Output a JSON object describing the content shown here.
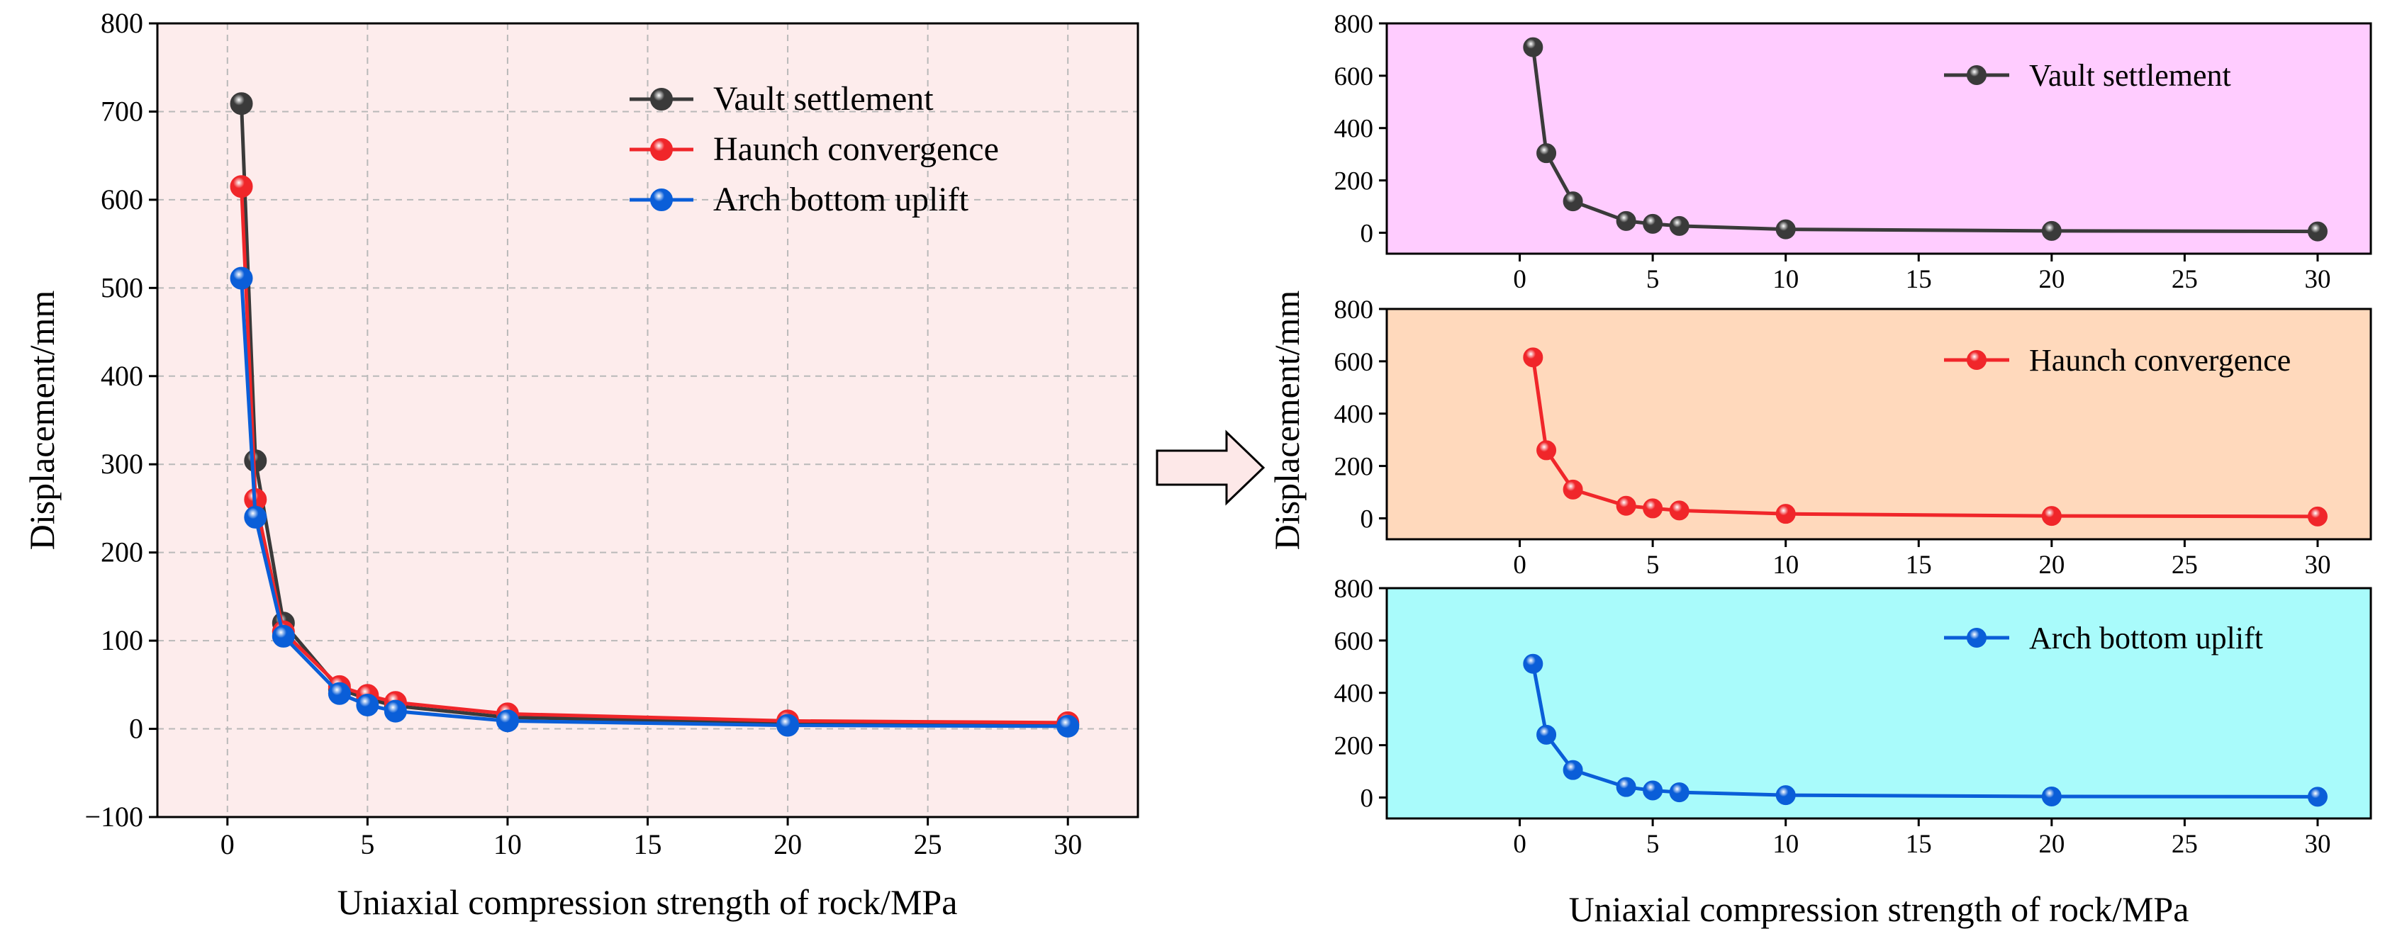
{
  "colors": {
    "vault": "#3a3a3a",
    "haunch": "#f0262a",
    "arch": "#0a5ed8",
    "main_bg": "#fdecec",
    "sub1_bg": "#ffccff",
    "sub2_bg": "#ffd9bc",
    "sub3_bg": "#a9fbfb",
    "arrow_fill": "#fde8e8"
  },
  "chart_data": [
    {
      "id": "main",
      "type": "line",
      "xlabel": "Uniaxial compression strength of rock/MPa",
      "ylabel": "Displacement/mm",
      "xlim": [
        -2.5,
        32.5
      ],
      "ylim": [
        -100,
        800
      ],
      "xticks": [
        0,
        5,
        10,
        15,
        20,
        25,
        30
      ],
      "yticks": [
        -100,
        0,
        100,
        200,
        300,
        400,
        500,
        600,
        700,
        800
      ],
      "ytick_labels": [
        "−100",
        "0",
        "100",
        "200",
        "300",
        "400",
        "500",
        "600",
        "700",
        "800"
      ],
      "grid": true,
      "legend": "top-right",
      "x": [
        0.5,
        1,
        2,
        4,
        5,
        6,
        10,
        20,
        30
      ],
      "series": [
        {
          "name": "Vault settlement",
          "color_key": "vault",
          "values": [
            709,
            304,
            120,
            45,
            34,
            26,
            13,
            7,
            5
          ]
        },
        {
          "name": "Haunch convergence",
          "color_key": "haunch",
          "values": [
            615,
            260,
            110,
            48,
            38,
            30,
            17,
            9,
            7
          ]
        },
        {
          "name": "Arch bottom uplift",
          "color_key": "arch",
          "values": [
            511,
            240,
            105,
            40,
            27,
            20,
            9,
            4,
            3
          ]
        }
      ]
    },
    {
      "id": "sub1",
      "type": "line",
      "xlim": [
        -5,
        32
      ],
      "ylim": [
        -80,
        800
      ],
      "xticks": [
        0,
        5,
        10,
        15,
        20,
        25,
        30
      ],
      "yticks": [
        0,
        200,
        400,
        600,
        800
      ],
      "legend": "top-right",
      "x": [
        0.5,
        1,
        2,
        4,
        5,
        6,
        10,
        20,
        30
      ],
      "series": [
        {
          "name": "Vault settlement",
          "color_key": "vault",
          "values": [
            709,
            304,
            120,
            45,
            34,
            26,
            13,
            7,
            5
          ]
        }
      ]
    },
    {
      "id": "sub2",
      "type": "line",
      "xlim": [
        -5,
        32
      ],
      "ylim": [
        -80,
        800
      ],
      "xticks": [
        0,
        5,
        10,
        15,
        20,
        25,
        30
      ],
      "yticks": [
        0,
        200,
        400,
        600,
        800
      ],
      "legend": "top-right",
      "x": [
        0.5,
        1,
        2,
        4,
        5,
        6,
        10,
        20,
        30
      ],
      "series": [
        {
          "name": "Haunch convergence",
          "color_key": "haunch",
          "values": [
            615,
            260,
            110,
            48,
            38,
            30,
            17,
            9,
            7
          ]
        }
      ]
    },
    {
      "id": "sub3",
      "type": "line",
      "xlim": [
        -5,
        32
      ],
      "ylim": [
        -80,
        800
      ],
      "xticks": [
        0,
        5,
        10,
        15,
        20,
        25,
        30
      ],
      "yticks": [
        0,
        200,
        400,
        600,
        800
      ],
      "legend": "top-right",
      "x": [
        0.5,
        1,
        2,
        4,
        5,
        6,
        10,
        20,
        30
      ],
      "series": [
        {
          "name": "Arch bottom uplift",
          "color_key": "arch",
          "values": [
            511,
            240,
            105,
            40,
            27,
            20,
            9,
            4,
            3
          ]
        }
      ]
    }
  ],
  "right_panel": {
    "ylabel": "Displacement/mm",
    "xlabel": "Uniaxial compression strength of rock/MPa"
  }
}
